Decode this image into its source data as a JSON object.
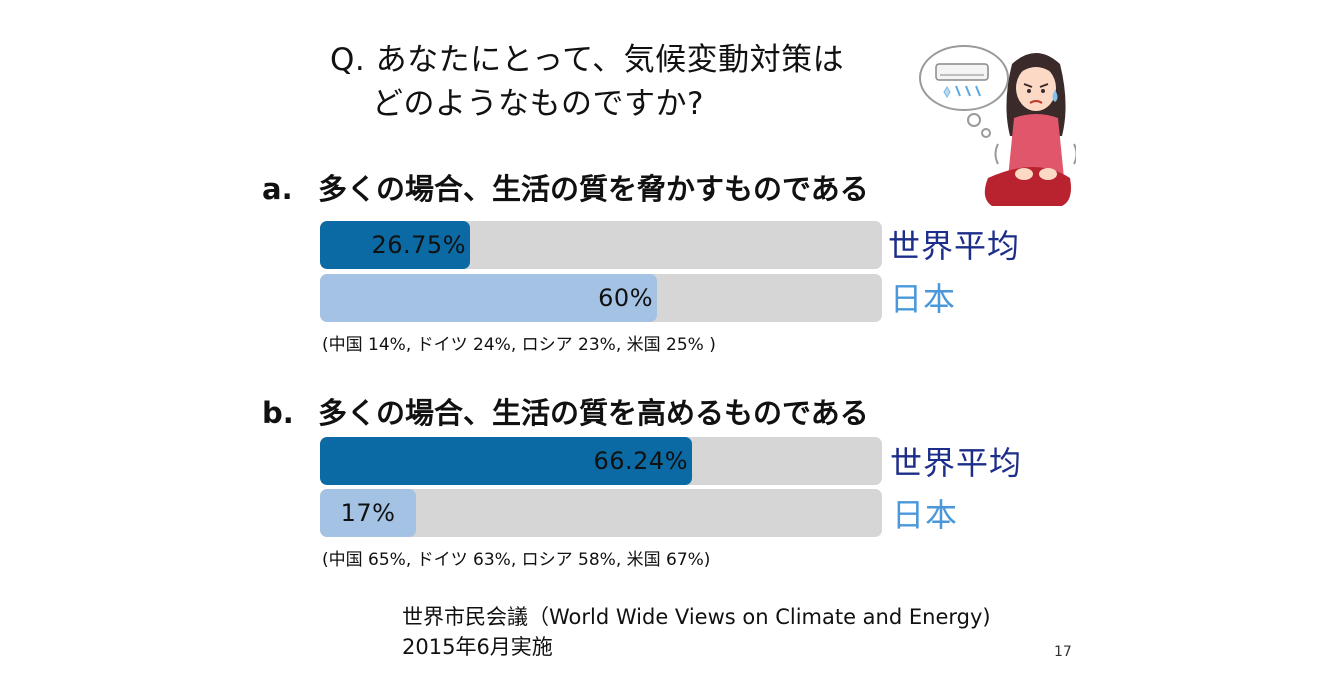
{
  "question": {
    "line1": "Q. あなたにとって、気候変動対策は",
    "line2": "どのようなものですか?"
  },
  "chart_data": [
    {
      "type": "bar",
      "orientation": "horizontal",
      "heading_letter": "a.",
      "heading": "多くの場合、生活の質を脅かすものである",
      "categories": [
        "世界平均",
        "日本"
      ],
      "values": [
        26.75,
        60
      ],
      "value_labels": [
        "26.75%",
        "60%"
      ],
      "xlim": [
        0,
        100
      ],
      "colors": [
        "#0b69a3",
        "#a3c2e4"
      ],
      "note": "(中国 14%, ドイツ 24%, ロシア 23%, 米国 25% )"
    },
    {
      "type": "bar",
      "orientation": "horizontal",
      "heading_letter": "b.",
      "heading": "多くの場合、生活の質を高めるものである",
      "categories": [
        "世界平均",
        "日本"
      ],
      "values": [
        66.24,
        17
      ],
      "value_labels": [
        "66.24%",
        "17%"
      ],
      "xlim": [
        0,
        100
      ],
      "colors": [
        "#0b69a3",
        "#a3c2e4"
      ],
      "note": "(中国 65%, ドイツ 63%, ロシア 58%, 米国 67%)"
    }
  ],
  "source": {
    "line1": "世界市民会議（World Wide Views on Climate and Energy)",
    "line2": "2015年6月実施"
  },
  "page_number": "17",
  "illustration": {
    "icon": "worried-woman-air-conditioner-illustration",
    "colors": {
      "shirt": "#e0566a",
      "skirt": "#b8232f",
      "hair": "#3a2a2a",
      "skin": "#fbd9c4"
    }
  }
}
